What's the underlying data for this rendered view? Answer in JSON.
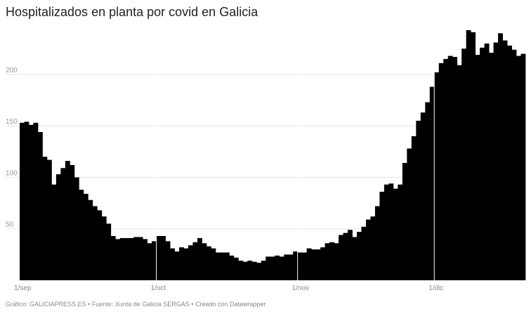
{
  "header": {
    "title": "Hospitalizados en planta por covid en Galicia"
  },
  "footer": {
    "text": "Gráfico: GALICIAPRESS.ES • Fuente: Xunta de Galicia SERGAS • Creado con Datawrapper"
  },
  "colors": {
    "bar": "#000000",
    "gridline": "#e6e6e6",
    "tick_text": "#999999",
    "axis_text": "#888888",
    "month_separator": "#ffffff"
  },
  "chart_data": {
    "type": "bar",
    "x_start": "1/sep",
    "x_ticks": [
      {
        "label": "1/sep",
        "day": 0
      },
      {
        "label": "1/oct",
        "day": 30
      },
      {
        "label": "1/nov",
        "day": 61
      },
      {
        "label": "1/dic",
        "day": 91
      }
    ],
    "y_ticks": [
      50,
      100,
      150,
      200
    ],
    "ylim": [
      0,
      245
    ],
    "grid": true,
    "values": [
      153,
      154,
      151,
      153,
      144,
      120,
      117,
      93,
      103,
      109,
      116,
      112,
      100,
      88,
      84,
      78,
      72,
      68,
      62,
      55,
      43,
      40,
      41,
      41,
      41,
      42,
      42,
      40,
      36,
      38,
      43,
      43,
      38,
      31,
      28,
      32,
      31,
      34,
      37,
      41,
      36,
      33,
      31,
      27,
      27,
      27,
      24,
      22,
      19,
      18,
      19,
      18,
      17,
      19,
      23,
      23,
      24,
      23,
      25,
      25,
      28,
      27,
      27,
      31,
      30,
      30,
      32,
      36,
      37,
      36,
      44,
      46,
      49,
      42,
      47,
      52,
      59,
      62,
      72,
      86,
      93,
      94,
      89,
      93,
      114,
      128,
      140,
      155,
      163,
      173,
      188,
      202,
      211,
      215,
      218,
      217,
      209,
      225,
      243,
      241,
      219,
      226,
      230,
      221,
      231,
      240,
      233,
      228,
      224,
      218,
      220
    ]
  }
}
